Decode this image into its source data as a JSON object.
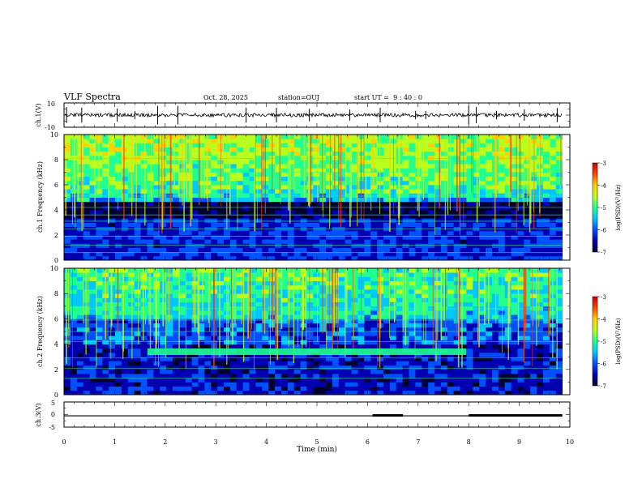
{
  "header": {
    "title": "VLF Spectra",
    "date": "Oct. 28, 2025",
    "station": "station=OUJ",
    "start_ut": "start UT =  9 : 40 : 0"
  },
  "colors": {
    "waveform": "#000000",
    "colormap": [
      "#000030",
      "#0000b0",
      "#0050ff",
      "#00c8ff",
      "#20ff90",
      "#b8ff20",
      "#ffd000",
      "#ff4000",
      "#cc0000"
    ]
  },
  "chart_data": [
    {
      "type": "line",
      "name": "ch1-waveform",
      "ylabel": "ch.1(V)",
      "ylim": [
        -10,
        10
      ],
      "y_ticks": [
        "10",
        "-10"
      ],
      "xlim": [
        0,
        10
      ],
      "baseline": 0,
      "noise_amplitude": 1.5,
      "spikes_x": [
        0.05,
        0.35,
        1.05,
        1.4,
        1.85,
        2.25,
        3.6,
        4.2,
        4.85,
        5.65,
        6.25,
        6.95,
        7.15,
        8.0,
        8.15,
        8.55,
        9.1,
        9.75
      ]
    },
    {
      "type": "heatmap",
      "name": "ch1-spectrogram",
      "ylabel": "ch.1 Frequency (kHz)",
      "xlim": [
        0,
        10
      ],
      "ylim": [
        0,
        10
      ],
      "y_ticks": [
        "0",
        "2",
        "4",
        "6",
        "8",
        "10"
      ],
      "data_end_min": 9.85,
      "colorbar": {
        "label": "log(PSD)(V²/Hz)",
        "ticks": [
          "-3",
          "-4",
          "-5",
          "-6",
          "-7"
        ],
        "range": [
          -7,
          -3
        ]
      },
      "horizontal_lines_khz": [
        0.6,
        1.2,
        1.9,
        2.5,
        3.1,
        3.6,
        4.2,
        5.1,
        7.0,
        8.1
      ]
    },
    {
      "type": "heatmap",
      "name": "ch2-spectrogram",
      "ylabel": "ch.2 Frequency (kHz)",
      "xlim": [
        0,
        10
      ],
      "ylim": [
        0,
        10
      ],
      "y_ticks": [
        "0",
        "2",
        "4",
        "6",
        "8",
        "10"
      ],
      "data_end_min": 9.85,
      "colorbar": {
        "label": "log(PSD)(V²/Hz)",
        "ticks": [
          "-3",
          "-4",
          "-5",
          "-6",
          "-7"
        ],
        "range": [
          -7,
          -3
        ]
      },
      "band": {
        "freq_khz": 3.4,
        "start_min": 1.65,
        "end_min": 7.95
      },
      "horizontal_lines_khz": [
        1.3,
        2.1,
        2.9,
        4.2,
        5.0,
        5.9,
        6.8
      ]
    },
    {
      "type": "line",
      "name": "ch3-level",
      "ylabel": "ch.3(V)",
      "ylim": [
        -5,
        5
      ],
      "y_ticks": [
        "5",
        "0",
        "-5"
      ],
      "xlim": [
        0,
        10
      ],
      "x_ticks": [
        "0",
        "1",
        "2",
        "3",
        "4",
        "5",
        "6",
        "7",
        "8",
        "9",
        "10"
      ],
      "xlabel": "Time (min)",
      "level_v": -0.5,
      "segments_min": [
        [
          6.1,
          6.7
        ],
        [
          8.0,
          9.85
        ]
      ]
    }
  ]
}
